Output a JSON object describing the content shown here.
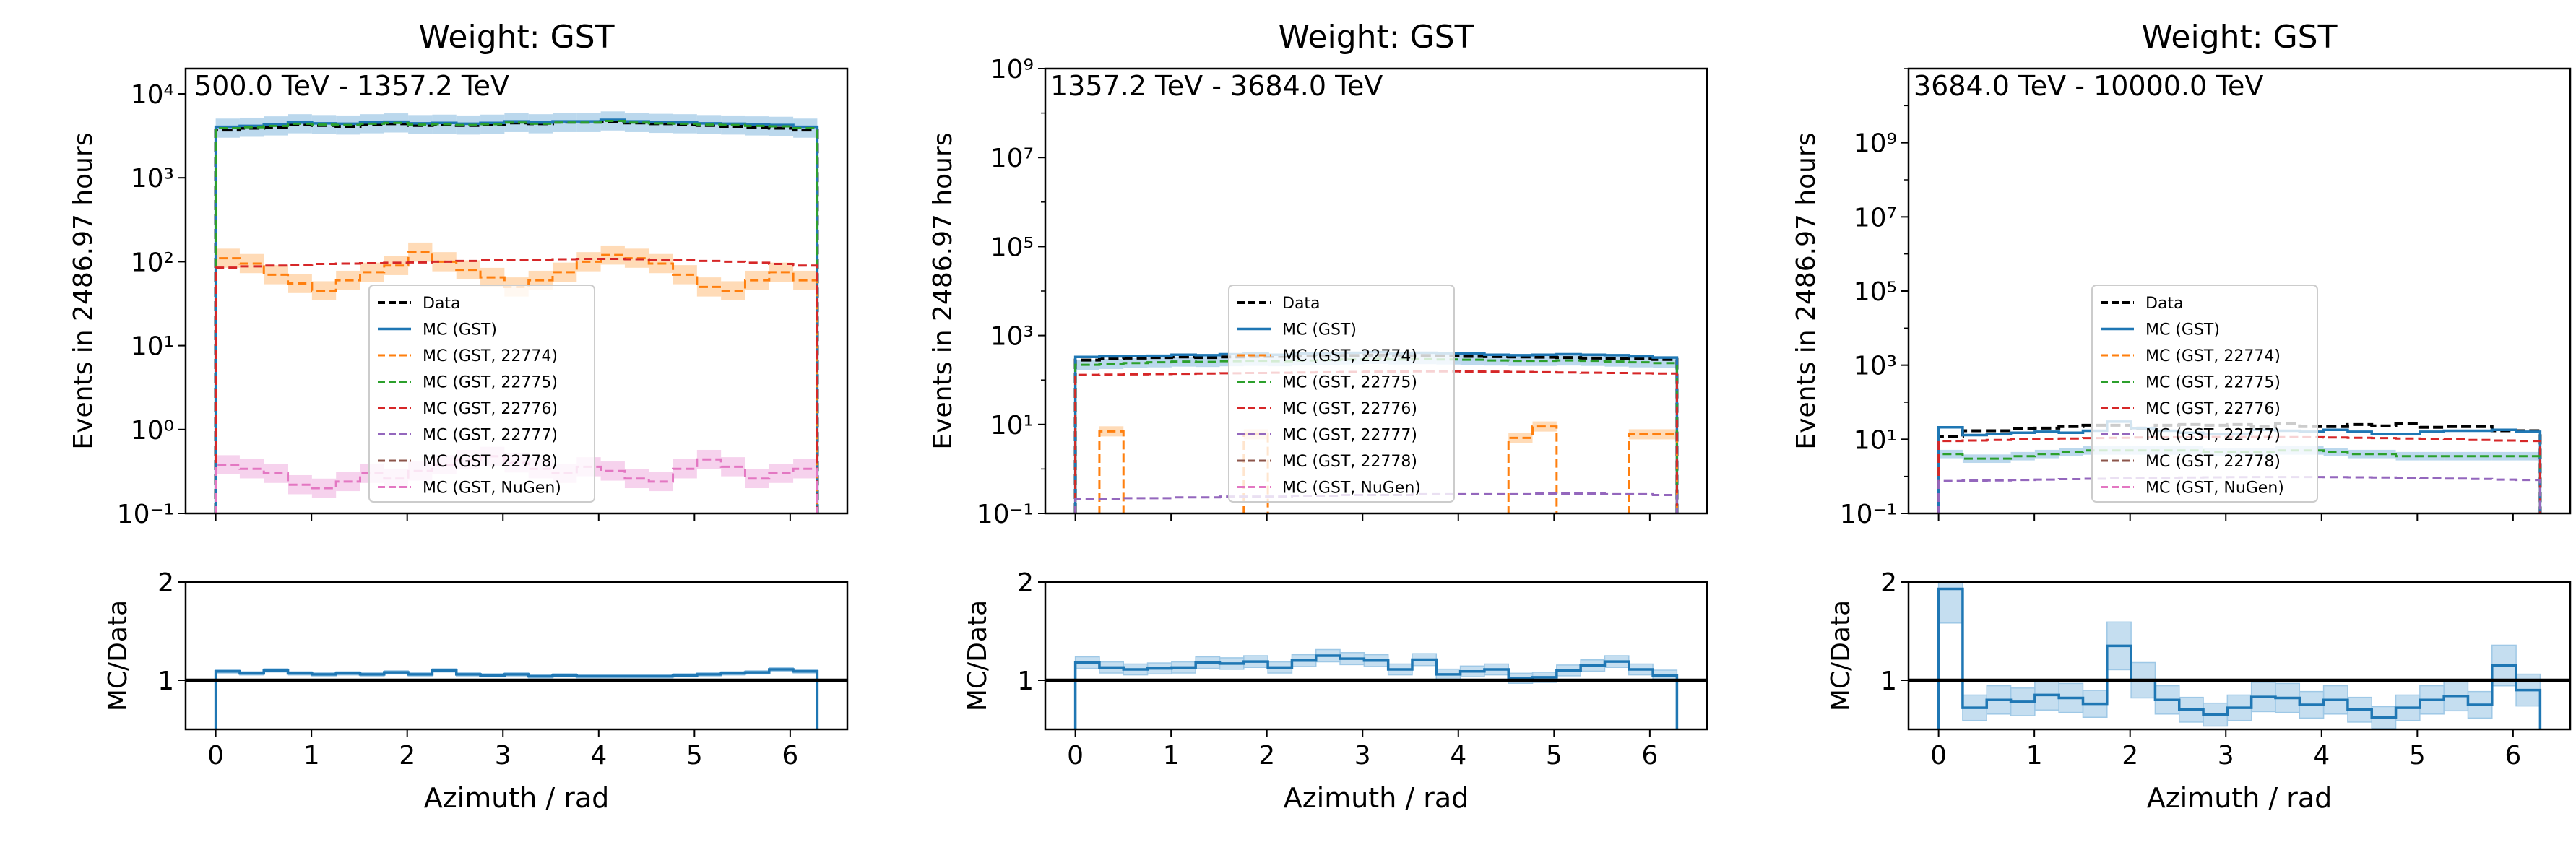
{
  "figure": {
    "colors": {
      "data": "#000000",
      "gst": "#1f77b4",
      "s22774": "#ff7f0e",
      "s22775": "#2ca02c",
      "s22776": "#d62728",
      "s22777": "#9467bd",
      "s22778": "#8c564b",
      "nugen": "#e377c2",
      "band_orange": "#ffcc99",
      "band_pink": "#f2bfe5",
      "band_blue": "#9ec8e6"
    }
  },
  "chart_data": [
    {
      "type": "line",
      "title": "Weight: GST",
      "annotation": "500.0 TeV - 1357.2 TeV",
      "ylabel": "Events in 2486.97 hours",
      "ylog": true,
      "ylim": [
        0.1,
        20000
      ],
      "yticks": [
        "10⁻¹",
        "10⁰",
        "10¹",
        "10²",
        "10³",
        "10⁴"
      ],
      "ytick_values": [
        0.1,
        1,
        10,
        100,
        1000,
        10000
      ],
      "legend_position": "center",
      "series": [
        {
          "name": "Data",
          "values": [
            3700,
            3900,
            4000,
            4300,
            4200,
            4100,
            4300,
            4400,
            4200,
            4300,
            4200,
            4300,
            4500,
            4400,
            4600,
            4600,
            4700,
            4500,
            4400,
            4300,
            4200,
            4100,
            4000,
            3900,
            3700
          ]
        },
        {
          "name": "MC (GST)",
          "values": [
            4050,
            4150,
            4300,
            4550,
            4450,
            4400,
            4550,
            4650,
            4450,
            4500,
            4400,
            4500,
            4700,
            4550,
            4700,
            4700,
            4900,
            4700,
            4600,
            4550,
            4450,
            4400,
            4300,
            4250,
            4050
          ]
        },
        {
          "name": "MC (GST, 22774)",
          "values": [
            110,
            95,
            70,
            55,
            45,
            60,
            75,
            90,
            130,
            100,
            80,
            65,
            50,
            60,
            75,
            100,
            120,
            110,
            95,
            70,
            50,
            45,
            60,
            75,
            60
          ]
        },
        {
          "name": "MC (GST, 22775)",
          "values": [
            3900,
            4000,
            4150,
            4400,
            4300,
            4250,
            4400,
            4500,
            4300,
            4350,
            4250,
            4350,
            4550,
            4400,
            4550,
            4550,
            4750,
            4550,
            4450,
            4400,
            4300,
            4250,
            4150,
            4100,
            3900
          ]
        },
        {
          "name": "MC (GST, 22776)",
          "values": [
            85,
            88,
            90,
            92,
            94,
            95,
            96,
            97,
            98,
            100,
            102,
            104,
            105,
            106,
            107,
            108,
            108,
            107,
            106,
            104,
            102,
            100,
            97,
            94,
            90
          ]
        },
        {
          "name": "MC (GST, 22777)",
          "values": []
        },
        {
          "name": "MC (GST, 22778)",
          "values": []
        },
        {
          "name": "MC (GST, NuGen)",
          "values": [
            0.38,
            0.34,
            0.3,
            0.22,
            0.2,
            0.24,
            0.3,
            0.26,
            0.32,
            0.38,
            0.44,
            0.48,
            0.4,
            0.34,
            0.3,
            0.36,
            0.32,
            0.26,
            0.24,
            0.34,
            0.44,
            0.36,
            0.26,
            0.3,
            0.34
          ]
        }
      ],
      "ratio": {
        "ylabel": "MC/Data",
        "yticks": [
          "1",
          "2"
        ],
        "ylim": [
          0.5,
          2
        ],
        "values": [
          1.09,
          1.07,
          1.1,
          1.07,
          1.06,
          1.07,
          1.06,
          1.08,
          1.06,
          1.1,
          1.06,
          1.05,
          1.06,
          1.04,
          1.05,
          1.04,
          1.04,
          1.04,
          1.04,
          1.05,
          1.06,
          1.07,
          1.08,
          1.11,
          1.09
        ],
        "band": 0.015
      },
      "xticks": [
        "0",
        "1",
        "2",
        "3",
        "4",
        "5",
        "6"
      ],
      "xlabel": "Azimuth / rad",
      "xlim": [
        -0.314,
        6.597
      ]
    },
    {
      "type": "line",
      "title": "Weight: GST",
      "annotation": "1357.2 TeV - 3684.0 TeV",
      "ylabel": "Events in 2486.97 hours",
      "ylog": true,
      "ylim": [
        0.1,
        1000000000
      ],
      "yticks": [
        "10⁻¹",
        "10¹",
        "10³",
        "10⁵",
        "10⁷",
        "10⁹"
      ],
      "ytick_values": [
        0.1,
        10,
        1000,
        100000,
        10000000,
        1000000000
      ],
      "legend_position": "center",
      "series": [
        {
          "name": "Data",
          "values": [
            280,
            300,
            310,
            320,
            330,
            320,
            330,
            340,
            340,
            350,
            345,
            355,
            360,
            360,
            355,
            350,
            340,
            335,
            330,
            325,
            320,
            310,
            305,
            300,
            290
          ]
        },
        {
          "name": "MC (GST)",
          "values": [
            330,
            340,
            345,
            350,
            370,
            360,
            380,
            390,
            370,
            390,
            400,
            410,
            420,
            400,
            410,
            400,
            390,
            370,
            360,
            370,
            380,
            370,
            360,
            340,
            320
          ]
        },
        {
          "name": "MC (GST, 22774)",
          "values": [
            null,
            7,
            null,
            null,
            null,
            null,
            null,
            6,
            null,
            null,
            null,
            null,
            null,
            null,
            null,
            null,
            null,
            null,
            5,
            9,
            null,
            null,
            null,
            6,
            6
          ]
        },
        {
          "name": "MC (GST, 22775)",
          "values": [
            220,
            230,
            240,
            250,
            260,
            255,
            265,
            270,
            265,
            275,
            280,
            290,
            300,
            290,
            295,
            290,
            285,
            275,
            270,
            270,
            275,
            270,
            260,
            250,
            240
          ]
        },
        {
          "name": "MC (GST, 22776)",
          "values": [
            130,
            132,
            134,
            136,
            138,
            140,
            142,
            144,
            146,
            148,
            150,
            152,
            154,
            155,
            156,
            156,
            155,
            154,
            152,
            150,
            148,
            146,
            144,
            142,
            140
          ]
        },
        {
          "name": "MC (GST, 22777)",
          "values": [
            0.21,
            0.21,
            0.22,
            0.22,
            0.23,
            0.23,
            0.24,
            0.24,
            0.24,
            0.25,
            0.25,
            0.26,
            0.26,
            0.26,
            0.27,
            0.27,
            0.27,
            0.27,
            0.27,
            0.28,
            0.28,
            0.28,
            0.27,
            0.27,
            0.26
          ]
        },
        {
          "name": "MC (GST, 22778)",
          "values": []
        },
        {
          "name": "MC (GST, NuGen)",
          "values": []
        }
      ],
      "ratio": {
        "ylabel": "MC/Data",
        "yticks": [
          "1",
          "2"
        ],
        "ylim": [
          0.5,
          2
        ],
        "values": [
          1.18,
          1.13,
          1.11,
          1.12,
          1.13,
          1.18,
          1.17,
          1.19,
          1.13,
          1.2,
          1.25,
          1.22,
          1.2,
          1.11,
          1.21,
          1.06,
          1.09,
          1.11,
          1.02,
          1.03,
          1.1,
          1.15,
          1.19,
          1.11,
          1.05
        ],
        "band": 0.05
      },
      "xticks": [
        "0",
        "1",
        "2",
        "3",
        "4",
        "5",
        "6"
      ],
      "xlabel": "Azimuth / rad",
      "xlim": [
        -0.314,
        6.597
      ]
    },
    {
      "type": "line",
      "title": "Weight: GST",
      "annotation": "3684.0 TeV - 10000.0 TeV",
      "ylabel": "Events in 2486.97 hours",
      "ylog": true,
      "ylim": [
        0.1,
        100000000000
      ],
      "yticks": [
        "10⁻¹",
        "10¹",
        "10³",
        "10⁵",
        "10⁷",
        "10⁹"
      ],
      "ytick_values": [
        0.1,
        10,
        1000,
        100000,
        10000000,
        1000000000
      ],
      "legend_position": "center",
      "series": [
        {
          "name": "Data",
          "values": [
            12,
            17,
            17,
            19,
            20,
            22,
            24,
            24,
            20,
            24,
            25,
            24,
            25,
            22,
            26,
            22,
            22,
            25,
            23,
            26,
            21,
            22,
            22,
            17,
            17
          ]
        },
        {
          "name": "MC (GST)",
          "values": [
            21,
            13,
            14,
            15,
            16,
            15,
            17,
            30,
            20,
            17,
            15,
            14,
            14,
            18,
            17,
            16,
            18,
            16,
            14,
            14,
            16,
            17,
            17,
            18,
            16
          ]
        },
        {
          "name": "MC (GST, 22774)",
          "values": []
        },
        {
          "name": "MC (GST, 22775)",
          "values": [
            4,
            3,
            3,
            3.5,
            4,
            4.5,
            5,
            5,
            5,
            5,
            5,
            4.5,
            4.5,
            4.5,
            5,
            5,
            4.5,
            4,
            4,
            3.5,
            3.5,
            3.5,
            3.5,
            3.5,
            3.5
          ]
        },
        {
          "name": "MC (GST, 22776)",
          "values": [
            9,
            9.3,
            9.6,
            9.9,
            10.2,
            10.5,
            10.8,
            11,
            11.2,
            11.4,
            11.5,
            11.6,
            11.6,
            11.6,
            11.5,
            11.4,
            11.2,
            11,
            10.8,
            10.5,
            10.2,
            9.9,
            9.6,
            9.3,
            9
          ]
        },
        {
          "name": "MC (GST, 22777)",
          "values": [
            0.75,
            0.77,
            0.78,
            0.8,
            0.82,
            0.84,
            0.86,
            0.88,
            0.9,
            0.92,
            0.93,
            0.94,
            0.95,
            0.96,
            0.96,
            0.96,
            0.95,
            0.94,
            0.93,
            0.91,
            0.89,
            0.87,
            0.85,
            0.82,
            0.8
          ]
        },
        {
          "name": "MC (GST, 22778)",
          "values": []
        },
        {
          "name": "MC (GST, NuGen)",
          "values": []
        }
      ],
      "ratio": {
        "ylabel": "MC/Data",
        "yticks": [
          "1",
          "2"
        ],
        "ylim": [
          0.5,
          2
        ],
        "values": [
          1.93,
          0.72,
          0.8,
          0.78,
          0.85,
          0.82,
          0.76,
          1.35,
          1.0,
          0.8,
          0.7,
          0.65,
          0.72,
          0.83,
          0.82,
          0.75,
          0.8,
          0.7,
          0.62,
          0.72,
          0.8,
          0.84,
          0.75,
          1.15,
          0.9
        ],
        "band": 0.18
      },
      "xticks": [
        "0",
        "1",
        "2",
        "3",
        "4",
        "5",
        "6"
      ],
      "xlabel": "Azimuth / rad",
      "xlim": [
        -0.314,
        6.597
      ]
    }
  ]
}
